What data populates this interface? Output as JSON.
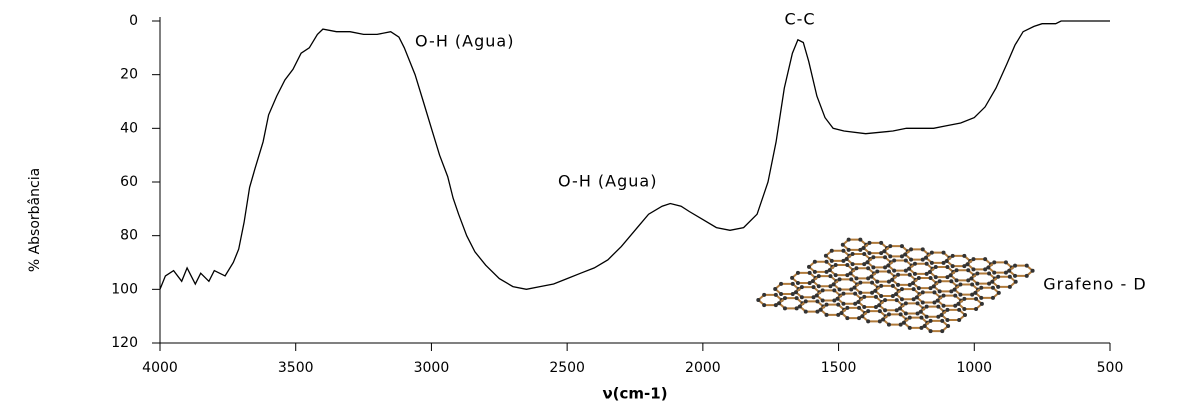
{
  "chart_data": {
    "type": "line",
    "y_label": "% Absorbância",
    "x_label": "ν(cm-1)",
    "annotations": [
      "O-H (Agua)",
      "O-H (Agua)",
      "C-C",
      "Grafeno - D"
    ],
    "x": [
      4000,
      3980,
      3950,
      3920,
      3900,
      3870,
      3850,
      3820,
      3800,
      3760,
      3730,
      3710,
      3690,
      3670,
      3650,
      3620,
      3600,
      3570,
      3540,
      3510,
      3480,
      3450,
      3420,
      3400,
      3350,
      3300,
      3250,
      3200,
      3150,
      3120,
      3100,
      3060,
      3030,
      3000,
      2970,
      2940,
      2920,
      2900,
      2870,
      2840,
      2800,
      2750,
      2700,
      2650,
      2600,
      2550,
      2500,
      2450,
      2400,
      2350,
      2300,
      2250,
      2200,
      2150,
      2120,
      2080,
      2050,
      2000,
      1950,
      1900,
      1850,
      1800,
      1760,
      1730,
      1700,
      1670,
      1650,
      1630,
      1610,
      1580,
      1550,
      1520,
      1480,
      1400,
      1300,
      1250,
      1200,
      1150,
      1100,
      1050,
      1000,
      960,
      920,
      880,
      850,
      820,
      780,
      750,
      700,
      680,
      600,
      500
    ],
    "values": [
      100,
      95,
      93,
      97,
      92,
      98,
      94,
      97,
      93,
      95,
      90,
      85,
      75,
      62,
      55,
      45,
      35,
      28,
      22,
      18,
      12,
      10,
      5,
      3,
      4,
      4,
      5,
      5,
      4,
      6,
      10,
      20,
      30,
      40,
      50,
      58,
      66,
      72,
      80,
      86,
      91,
      96,
      99,
      100,
      99,
      98,
      96,
      94,
      92,
      89,
      84,
      78,
      72,
      69,
      68,
      69,
      71,
      74,
      77,
      78,
      77,
      72,
      60,
      45,
      25,
      12,
      7,
      8,
      15,
      28,
      36,
      40,
      41,
      42,
      41,
      40,
      40,
      40,
      39,
      38,
      36,
      32,
      25,
      16,
      9,
      4,
      2,
      1,
      1,
      0,
      0,
      0
    ],
    "color": "#000000",
    "xlim": [
      4000,
      500
    ],
    "xticks": [
      4000,
      3500,
      3000,
      2500,
      2000,
      1500,
      1000,
      500
    ],
    "ylim": [
      120,
      0
    ],
    "yticks": [
      0,
      20,
      40,
      60,
      80,
      100,
      120
    ],
    "grid": false
  }
}
